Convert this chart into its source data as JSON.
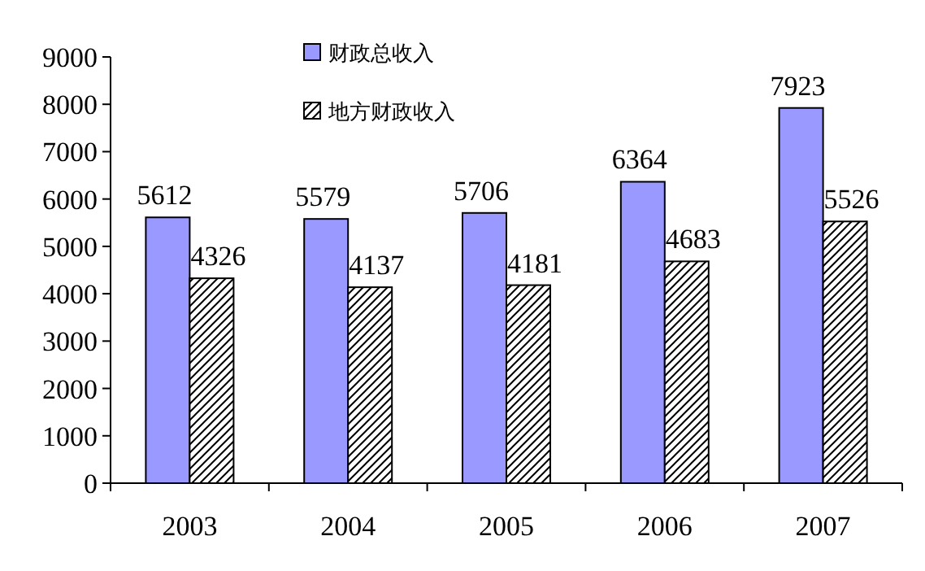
{
  "chart_data": {
    "type": "bar",
    "categories": [
      "2003",
      "2004",
      "2005",
      "2006",
      "2007"
    ],
    "series": [
      {
        "name": "财政总收入",
        "color": "#9999ff",
        "values": [
          5612,
          5579,
          5706,
          6364,
          7923
        ]
      },
      {
        "name": "地方财政收入",
        "color": "#000000",
        "values": [
          4326,
          4137,
          4181,
          4683,
          5526
        ]
      }
    ],
    "ylim": [
      0,
      9000
    ],
    "yticks": [
      0,
      1000,
      2000,
      3000,
      4000,
      5000,
      6000,
      7000,
      8000,
      9000
    ],
    "data_labels": true,
    "legend": "top",
    "grid": false
  }
}
